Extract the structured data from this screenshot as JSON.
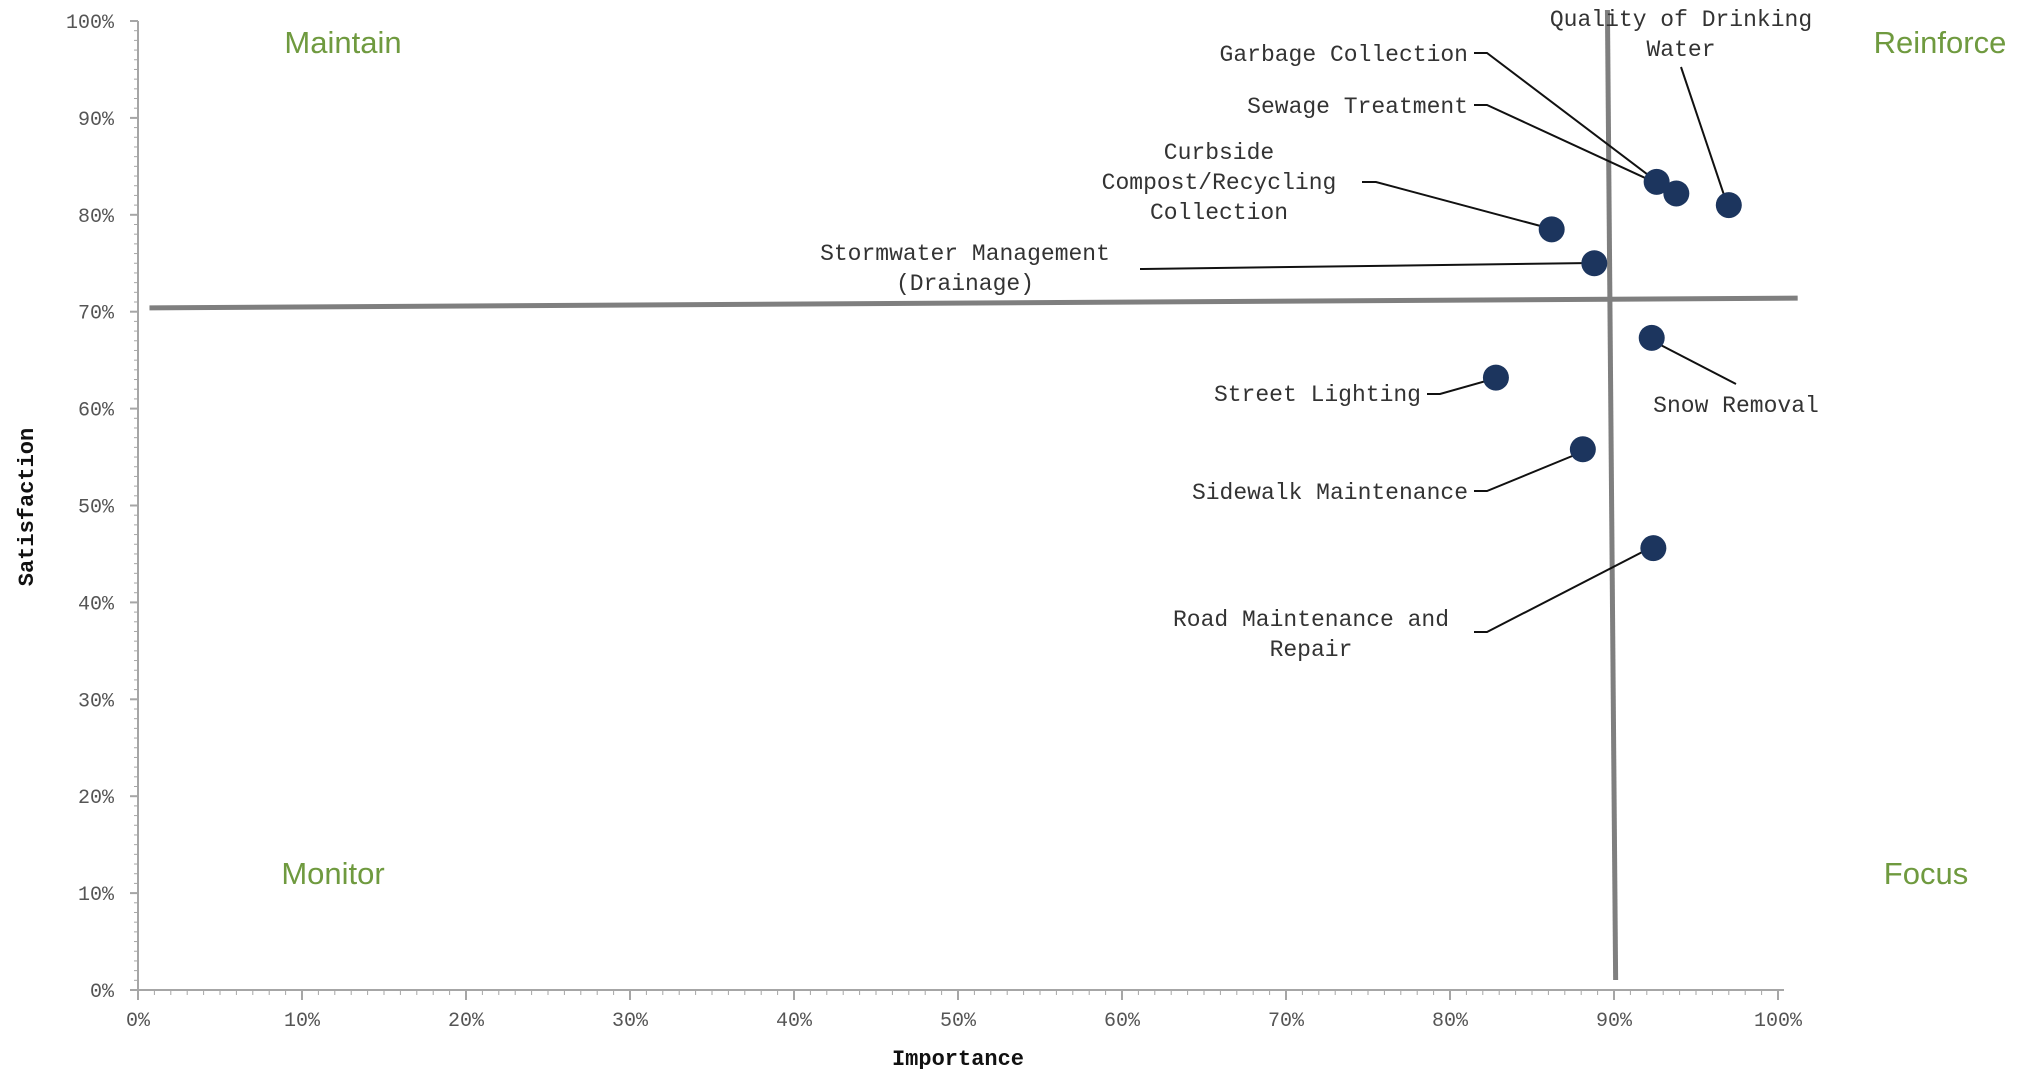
{
  "colors": {
    "point": "#1c355e",
    "quadrant_label": "#6f9a3f",
    "divider": "#7f7f7f",
    "axis": "#a6a6a6"
  },
  "chart_data": {
    "type": "scatter",
    "title": "",
    "xlabel": "Importance",
    "ylabel": "Satisfaction",
    "xlim": [
      0,
      100
    ],
    "ylim": [
      0,
      100
    ],
    "x_ticks": [
      "0%",
      "10%",
      "20%",
      "30%",
      "40%",
      "50%",
      "60%",
      "70%",
      "80%",
      "90%",
      "100%"
    ],
    "y_ticks": [
      "0%",
      "10%",
      "20%",
      "30%",
      "40%",
      "50%",
      "60%",
      "70%",
      "80%",
      "90%",
      "100%"
    ],
    "grid": false,
    "quadrant_dividers": {
      "x": 90,
      "y": 71
    },
    "quadrants": [
      "Maintain",
      "Reinforce",
      "Monitor",
      "Focus"
    ],
    "points": [
      {
        "label": "Quality of Drinking Water",
        "label_lines": [
          "Quality of Drinking",
          "Water"
        ],
        "x": 97.0,
        "y": 81.0
      },
      {
        "label": "Garbage Collection",
        "label_lines": [
          "Garbage Collection"
        ],
        "x": 92.6,
        "y": 83.4
      },
      {
        "label": "Sewage Treatment",
        "label_lines": [
          "Sewage Treatment"
        ],
        "x": 93.8,
        "y": 82.2
      },
      {
        "label": "Curbside Compost/Recycling Collection",
        "label_lines": [
          "Curbside",
          "Compost/Recycling",
          "Collection"
        ],
        "x": 86.2,
        "y": 78.5
      },
      {
        "label": "Stormwater Management (Drainage)",
        "label_lines": [
          "Stormwater Management",
          "(Drainage)"
        ],
        "x": 88.8,
        "y": 75.0
      },
      {
        "label": "Snow Removal",
        "label_lines": [
          "Snow Removal"
        ],
        "x": 92.3,
        "y": 67.3
      },
      {
        "label": "Street Lighting",
        "label_lines": [
          "Street Lighting"
        ],
        "x": 82.8,
        "y": 63.2
      },
      {
        "label": "Sidewalk Maintenance",
        "label_lines": [
          "Sidewalk Maintenance"
        ],
        "x": 88.1,
        "y": 55.8
      },
      {
        "label": "Road Maintenance and Repair",
        "label_lines": [
          "Road Maintenance and",
          "Repair"
        ],
        "x": 92.4,
        "y": 45.6
      }
    ]
  }
}
